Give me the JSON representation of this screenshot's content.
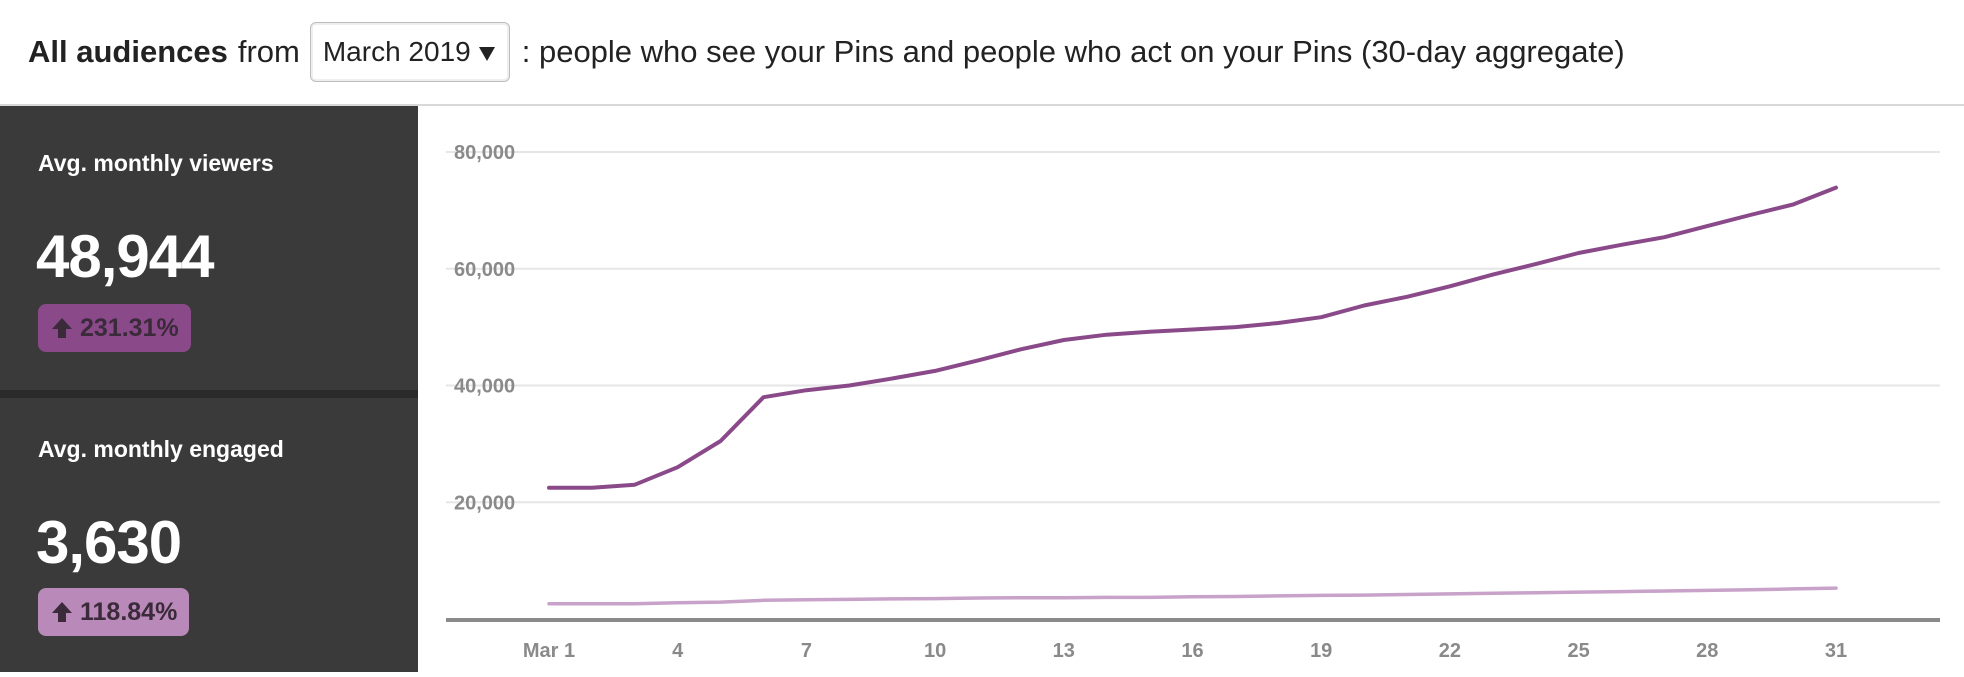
{
  "header": {
    "title_bold": "All audiences",
    "from_label": "from",
    "period_dropdown": {
      "selected": "March 2019"
    },
    "description": ": people who see your Pins and people who act on your Pins (30-day aggregate)"
  },
  "metrics": [
    {
      "label": "Avg. monthly viewers",
      "value": "48,944",
      "change": "231.31%",
      "color": "#8a4a8a"
    },
    {
      "label": "Avg. monthly engaged",
      "value": "3,630",
      "change": "118.84%",
      "color": "#b98ab9"
    }
  ],
  "chart_data": {
    "type": "line",
    "x": [
      1,
      2,
      3,
      4,
      5,
      6,
      7,
      8,
      9,
      10,
      11,
      12,
      13,
      14,
      15,
      16,
      17,
      18,
      19,
      20,
      21,
      22,
      23,
      24,
      25,
      26,
      27,
      28,
      29,
      30,
      31
    ],
    "x_tick_values": [
      1,
      4,
      7,
      10,
      13,
      16,
      19,
      22,
      25,
      28,
      31
    ],
    "x_tick_labels": [
      "Mar 1",
      "4",
      "7",
      "10",
      "13",
      "16",
      "19",
      "22",
      "25",
      "28",
      "31"
    ],
    "y_tick_values": [
      20000,
      40000,
      60000,
      80000
    ],
    "y_tick_labels": [
      "20,000",
      "40,000",
      "60,000",
      "80,000"
    ],
    "ylim": [
      0,
      80000
    ],
    "grid": true,
    "series": [
      {
        "color": "#8a4a8a",
        "values": [
          22500,
          22500,
          23000,
          26000,
          30500,
          38000,
          39200,
          40000,
          41200,
          42500,
          44300,
          46200,
          47800,
          48700,
          49200,
          49600,
          50000,
          50700,
          51700,
          53700,
          55200,
          57000,
          59000,
          60800,
          62700,
          64100,
          65400,
          67300,
          69200,
          71000,
          73900
        ]
      },
      {
        "color": "#c9a2c9",
        "values": [
          2600,
          2600,
          2600,
          2800,
          2900,
          3200,
          3300,
          3350,
          3450,
          3500,
          3600,
          3650,
          3650,
          3700,
          3700,
          3800,
          3850,
          3950,
          4050,
          4100,
          4200,
          4300,
          4400,
          4500,
          4600,
          4700,
          4800,
          4900,
          5000,
          5150,
          5300
        ]
      }
    ]
  }
}
